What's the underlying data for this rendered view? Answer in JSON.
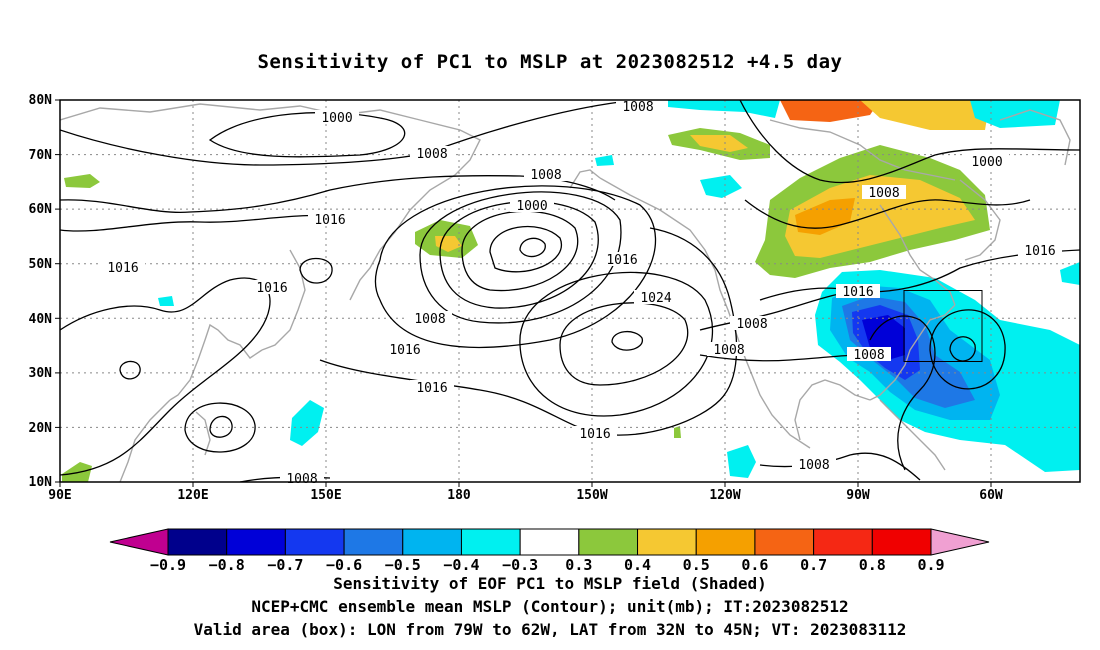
{
  "title": "Sensitivity of PC1 to MSLP at 2023082512 +4.5 day",
  "axes": {
    "lat_ticks": [
      "80N",
      "70N",
      "60N",
      "50N",
      "40N",
      "30N",
      "20N",
      "10N"
    ],
    "lon_ticks": [
      "90E",
      "120E",
      "150E",
      "180",
      "150W",
      "120W",
      "90W",
      "60W"
    ]
  },
  "contour_labels": [
    {
      "text": "1000"
    },
    {
      "text": "1008"
    },
    {
      "text": "1008"
    },
    {
      "text": "1008"
    },
    {
      "text": "1000"
    },
    {
      "text": "1016"
    },
    {
      "text": "1016"
    },
    {
      "text": "1016"
    },
    {
      "text": "1016"
    },
    {
      "text": "1024"
    },
    {
      "text": "1008"
    },
    {
      "text": "1016"
    },
    {
      "text": "1016"
    },
    {
      "text": "1008"
    },
    {
      "text": "1008"
    },
    {
      "text": "1016"
    },
    {
      "text": "1008"
    },
    {
      "text": "1000"
    },
    {
      "text": "1008"
    },
    {
      "text": "1016"
    },
    {
      "text": "1016"
    },
    {
      "text": "1008"
    },
    {
      "text": "1008"
    }
  ],
  "colorbar": {
    "labels": [
      "-0.9",
      "-0.8",
      "-0.7",
      "-0.6",
      "-0.5",
      "-0.4",
      "-0.3",
      "0.3",
      "0.4",
      "0.5",
      "0.6",
      "0.7",
      "0.8",
      "0.9"
    ],
    "colors": [
      "#c00090",
      "#00008c",
      "#0000d8",
      "#1438f0",
      "#1e78e6",
      "#00b4f0",
      "#00f0f0",
      "#ffffff",
      "#8cc83c",
      "#f5c832",
      "#f5a000",
      "#f56414",
      "#f52814",
      "#f00000",
      "#f0a0d2"
    ]
  },
  "caption": [
    "Sensitivity of EOF PC1 to MSLP field (Shaded)",
    "NCEP+CMC ensemble mean MSLP (Contour); unit(mb); IT:2023082512",
    "Valid area (box): LON from 79W to 62W, LAT from 32N to 45N; VT: 2023083112"
  ],
  "valid_box": {
    "lon_min": "79W",
    "lon_max": "62W",
    "lat_min": "32N",
    "lat_max": "45N"
  },
  "colors": {
    "coast": "#a8a8a8",
    "contour": "#000000",
    "grid": "#888888"
  }
}
